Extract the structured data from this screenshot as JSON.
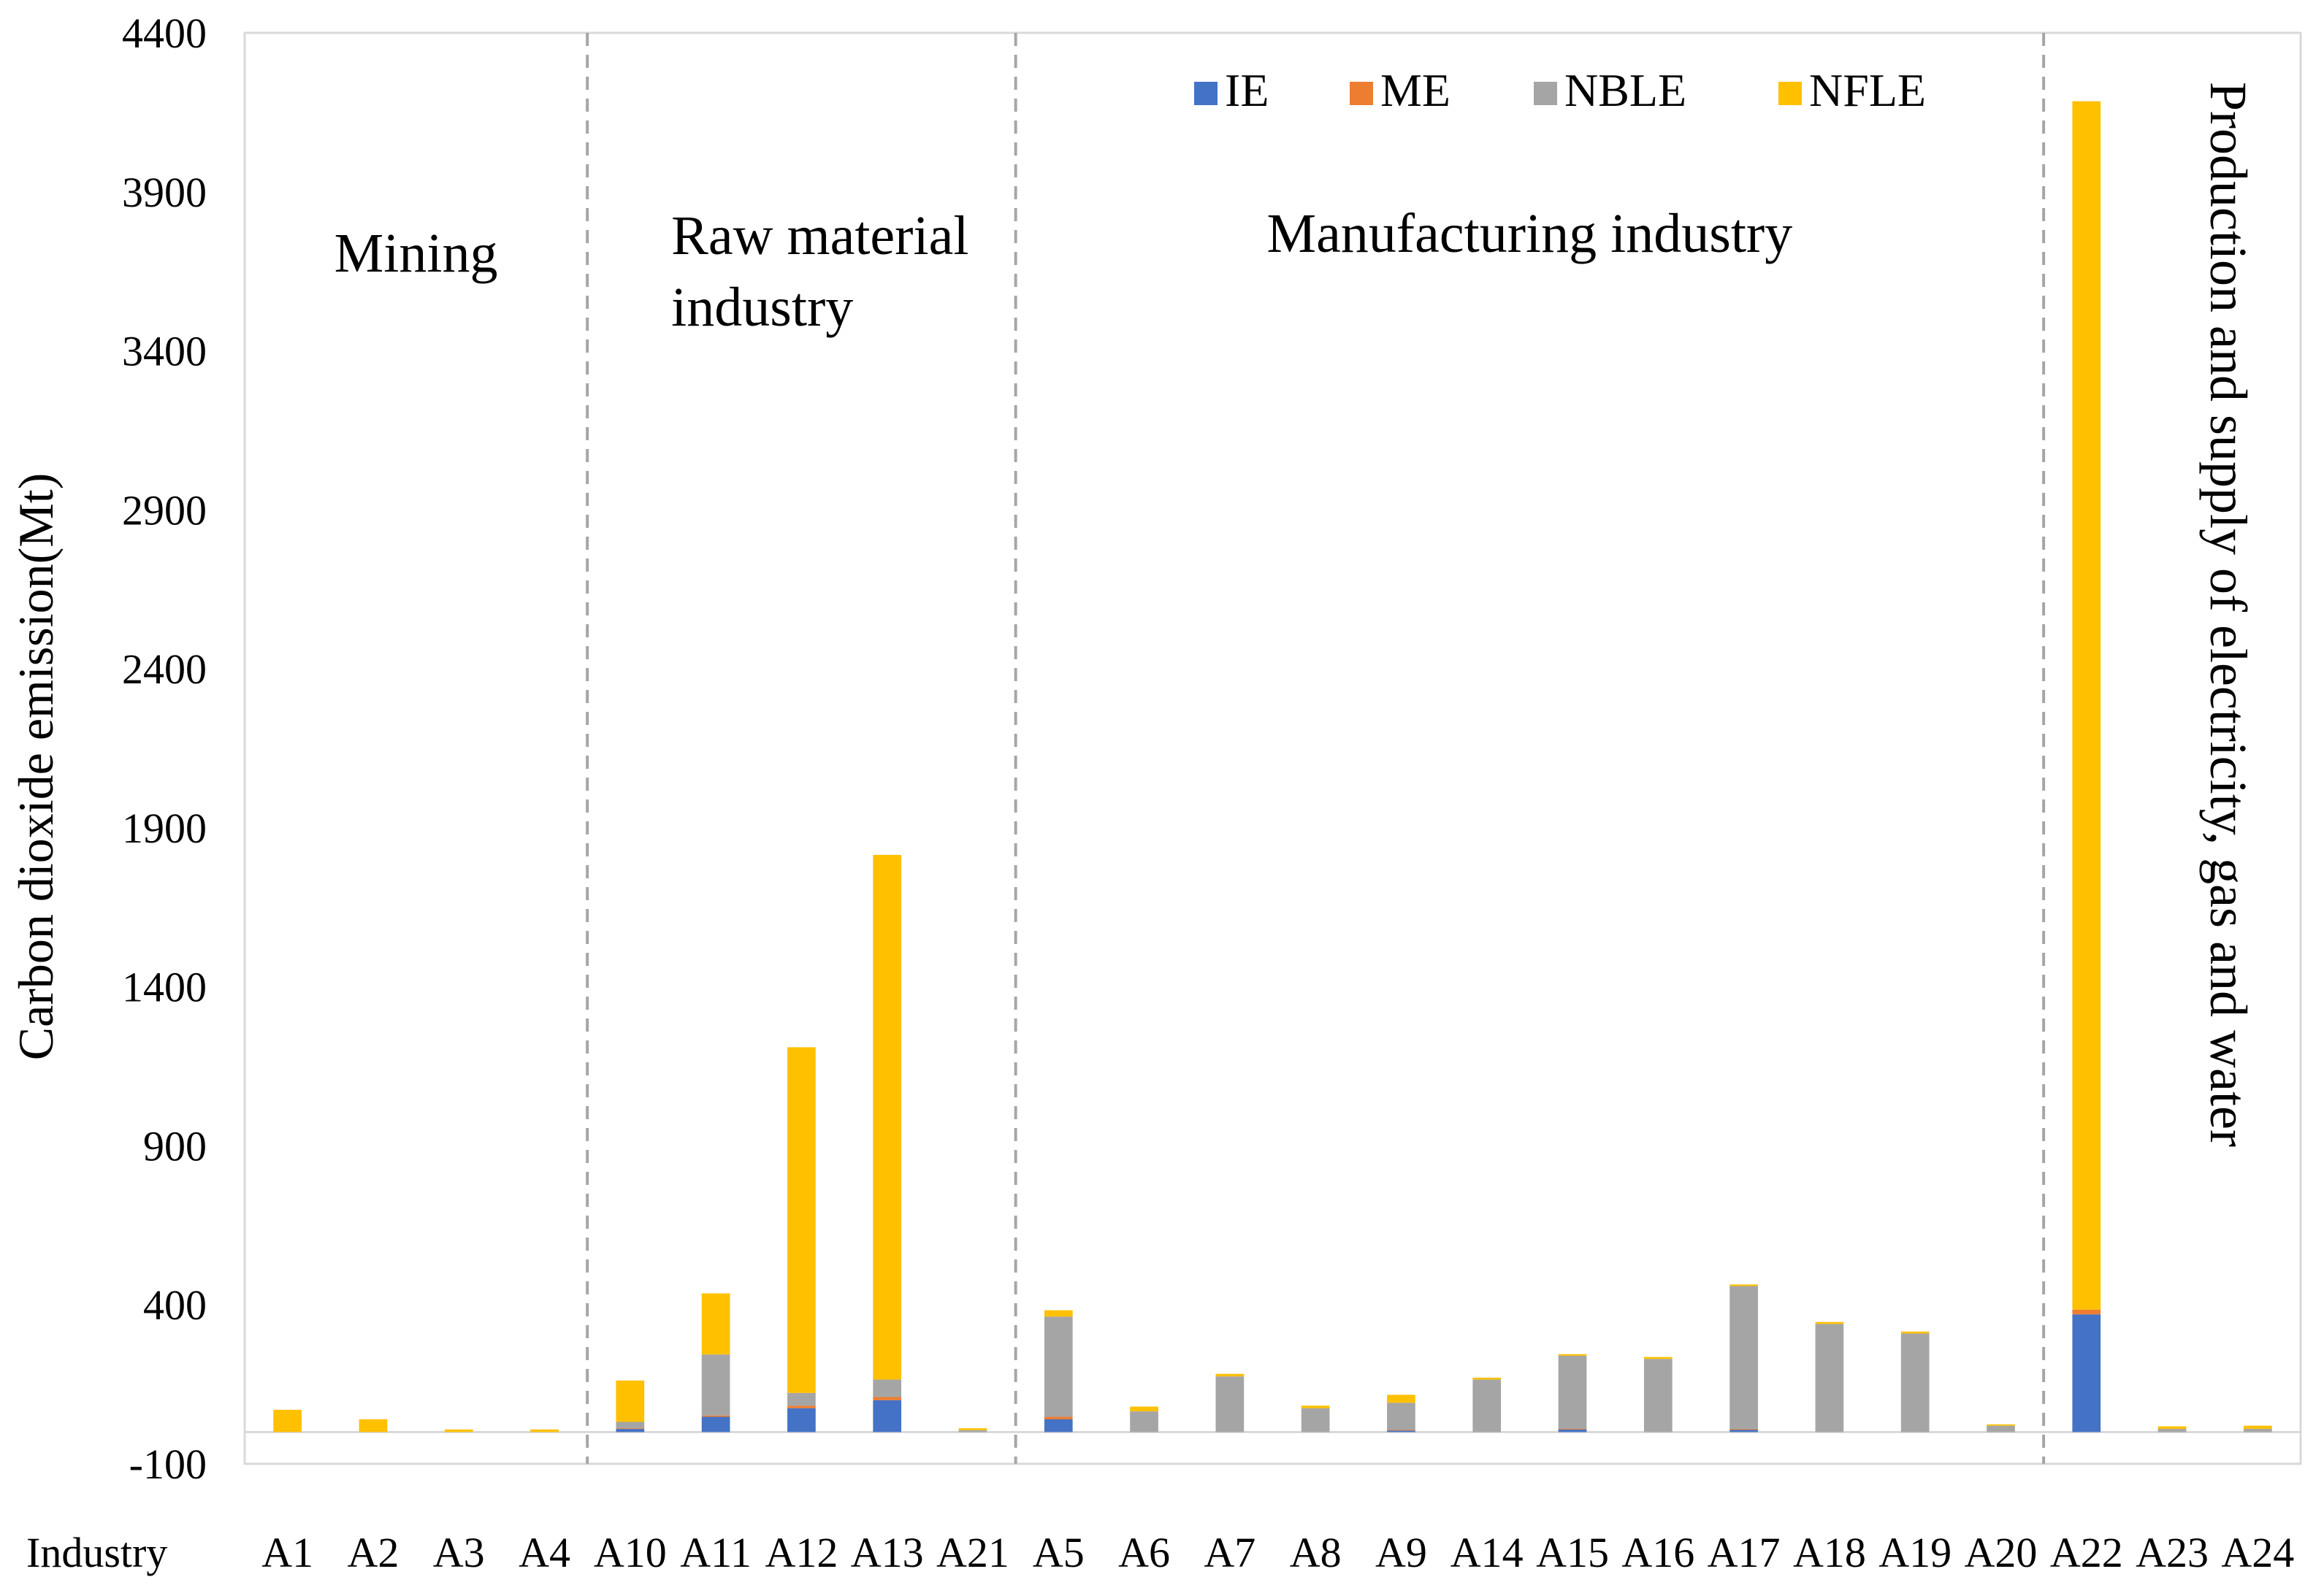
{
  "chart_data": {
    "type": "bar",
    "stacked": true,
    "ylabel": "Carbon dioxide emission(Mt)",
    "xlabel": "Industry",
    "ylim": [
      -100,
      4400
    ],
    "yticks": [
      -100,
      400,
      900,
      1400,
      1900,
      2400,
      2900,
      3400,
      3900,
      4400
    ],
    "categories": [
      "A1",
      "A2",
      "A3",
      "A4",
      "A10",
      "A11",
      "A12",
      "A13",
      "A21",
      "A5",
      "A6",
      "A7",
      "A8",
      "A9",
      "A14",
      "A15",
      "A16",
      "A17",
      "A18",
      "A19",
      "A20",
      "A22",
      "A23",
      "A24"
    ],
    "legend": {
      "position": "top-right",
      "columns": 4
    },
    "series": [
      {
        "name": "IE",
        "color": "#4472C4",
        "values": [
          0,
          0,
          0,
          0,
          10,
          48,
          75,
          100,
          0,
          40,
          0,
          0,
          0,
          5,
          0,
          8,
          0,
          7,
          0,
          0,
          0,
          370,
          0,
          0
        ]
      },
      {
        "name": "ME",
        "color": "#ED7D31",
        "values": [
          0,
          0,
          0,
          0,
          2,
          4,
          8,
          10,
          0,
          8,
          0,
          0,
          0,
          2,
          0,
          2,
          0,
          2,
          0,
          0,
          0,
          15,
          0,
          0
        ]
      },
      {
        "name": "NBLE",
        "color": "#A5A5A5",
        "values": [
          0,
          0,
          0,
          0,
          20,
          192,
          40,
          55,
          6,
          315,
          65,
          175,
          75,
          85,
          165,
          230,
          230,
          450,
          340,
          310,
          20,
          0,
          10,
          10
        ]
      },
      {
        "name": "NFLE",
        "color": "#FFC000",
        "values": [
          70,
          40,
          8,
          8,
          130,
          192,
          1087,
          1650,
          6,
          20,
          15,
          8,
          8,
          25,
          6,
          5,
          6,
          5,
          6,
          6,
          4,
          3800,
          8,
          10
        ]
      }
    ],
    "groups": [
      {
        "label_lines": [
          "Mining"
        ],
        "start": 0,
        "end": 3,
        "orientation": "horizontal"
      },
      {
        "label_lines": [
          "Raw material",
          "industry"
        ],
        "start": 4,
        "end": 8,
        "orientation": "horizontal"
      },
      {
        "label_lines": [
          "Manufacturing industry"
        ],
        "start": 9,
        "end": 20,
        "orientation": "horizontal"
      },
      {
        "label_lines": [
          "Production and supply of electricity, gas and water"
        ],
        "start": 21,
        "end": 23,
        "orientation": "vertical"
      }
    ]
  }
}
